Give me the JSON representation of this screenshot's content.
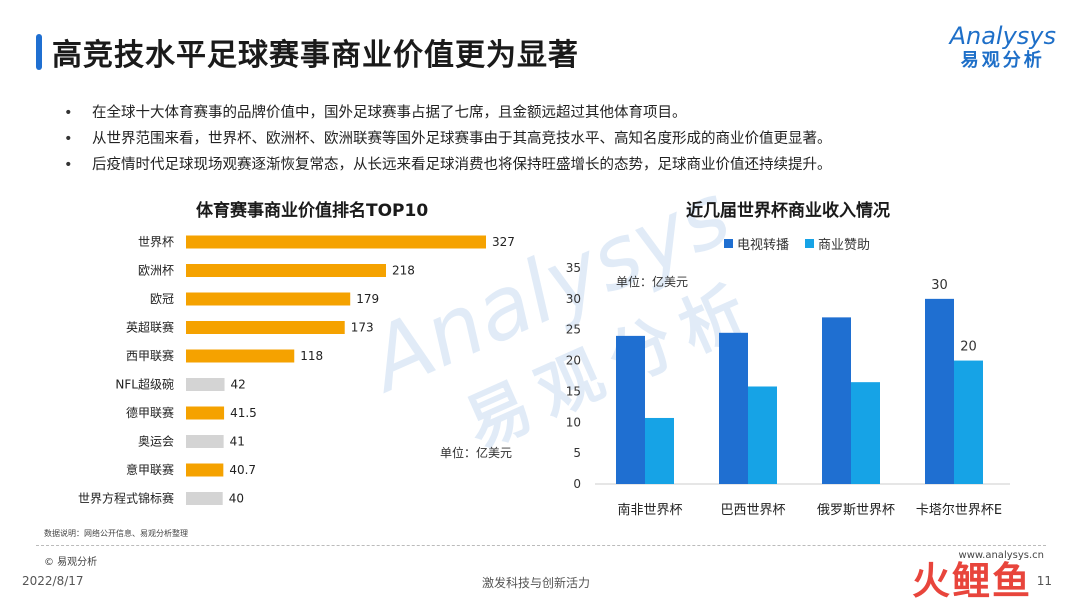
{
  "header": {
    "title": "高竞技水平足球赛事商业价值更为显著",
    "logo_en": "Analysys",
    "logo_cn": "易观分析"
  },
  "bullets": [
    "在全球十大体育赛事的品牌价值中，国外足球赛事占据了七席，且金额远超过其他体育项目。",
    "从世界范围来看，世界杯、欧洲杯、欧洲联赛等国外足球赛事由于其高竞技水平、高知名度形成的商业价值更显著。",
    "后疫情时代足球现场观赛逐渐恢复常态，从长远来看足球消费也将保持旺盛增长的态势，足球商业价值还持续提升。"
  ],
  "watermark": {
    "en": "Analysys",
    "cn": "易观分析"
  },
  "chart_data": [
    {
      "type": "bar",
      "orientation": "horizontal",
      "title": "体育赛事商业价值排名TOP10",
      "unit": "单位：亿美元",
      "categories": [
        "世界杯",
        "欧洲杯",
        "欧冠",
        "英超联赛",
        "西甲联赛",
        "NFL超级碗",
        "德甲联赛",
        "奥运会",
        "意甲联赛",
        "世界方程式锦标赛"
      ],
      "values": [
        327,
        218,
        179,
        173,
        118,
        42,
        41.5,
        41,
        40.7,
        40
      ],
      "value_labels": [
        "327",
        "218",
        "179",
        "173",
        "118",
        "42",
        "41.5",
        "41",
        "40.7",
        "40"
      ],
      "colors": [
        "#f5a200",
        "#f5a200",
        "#f5a200",
        "#f5a200",
        "#f5a200",
        "#d4d4d4",
        "#f5a200",
        "#d4d4d4",
        "#f5a200",
        "#d4d4d4"
      ],
      "xlim": [
        0,
        327
      ],
      "grid": false
    },
    {
      "type": "bar",
      "title": "近几届世界杯商业收入情况",
      "unit": "单位：亿美元",
      "categories": [
        "南非世界杯",
        "巴西世界杯",
        "俄罗斯世界杯",
        "卡塔尔世界杯E"
      ],
      "series": [
        {
          "name": "电视转播",
          "color": "#1f6fd1",
          "values": [
            24,
            24.5,
            27,
            30
          ]
        },
        {
          "name": "商业赞助",
          "color": "#16a3e6",
          "values": [
            10.7,
            15.8,
            16.5,
            20
          ]
        }
      ],
      "data_labels": [
        "30",
        "20"
      ],
      "ylim": [
        0,
        35
      ],
      "yticks": [
        0,
        5,
        10,
        15,
        20,
        25,
        30,
        35
      ],
      "legend": "top",
      "grid": false
    }
  ],
  "footer": {
    "source": "数据说明：网络公开信息、易观分析整理",
    "copyright": "© 易观分析",
    "website": "www.analysys.cn",
    "date": "2022/8/17",
    "slogan": "激发科技与创新活力",
    "page": "11",
    "corner_logo": "火鲤鱼"
  }
}
